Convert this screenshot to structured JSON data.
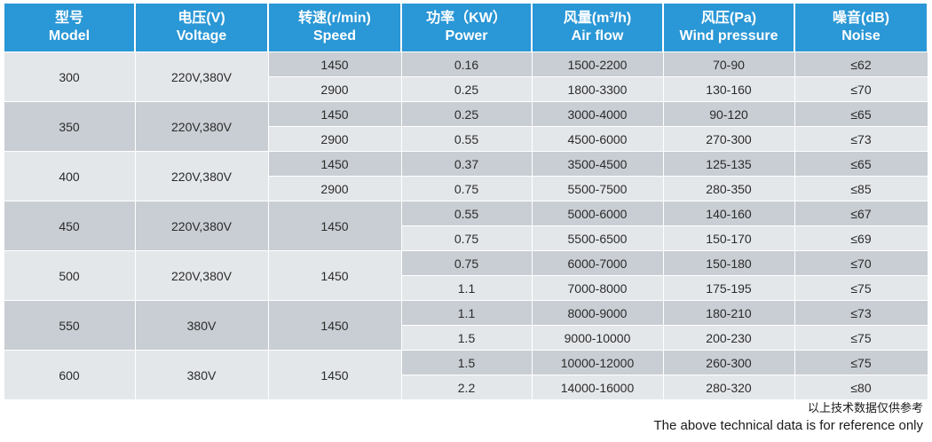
{
  "table": {
    "headers": [
      {
        "cn": "型号",
        "en": "Model"
      },
      {
        "cn": "电压(V)",
        "en": "Voltage"
      },
      {
        "cn": "转速(r/min)",
        "en": "Speed"
      },
      {
        "cn": "功率（KW）",
        "en": "Power"
      },
      {
        "cn": "风量(m³/h)",
        "en": "Air flow"
      },
      {
        "cn": "风压(Pa)",
        "en": "Wind pressure"
      },
      {
        "cn": "噪音(dB)",
        "en": "Noise"
      }
    ],
    "groups": [
      {
        "model": "300",
        "voltage": "220V,380V",
        "rows": [
          {
            "speed": "1450",
            "power": "0.16",
            "airflow": "1500-2200",
            "pressure": "70-90",
            "noise": "≤62"
          },
          {
            "speed": "2900",
            "power": "0.25",
            "airflow": "1800-3300",
            "pressure": "130-160",
            "noise": "≤70"
          }
        ]
      },
      {
        "model": "350",
        "voltage": "220V,380V",
        "rows": [
          {
            "speed": "1450",
            "power": "0.25",
            "airflow": "3000-4000",
            "pressure": "90-120",
            "noise": "≤65"
          },
          {
            "speed": "2900",
            "power": "0.55",
            "airflow": "4500-6000",
            "pressure": "270-300",
            "noise": "≤73"
          }
        ]
      },
      {
        "model": "400",
        "voltage": "220V,380V",
        "rows": [
          {
            "speed": "1450",
            "power": "0.37",
            "airflow": "3500-4500",
            "pressure": "125-135",
            "noise": "≤65"
          },
          {
            "speed": "2900",
            "power": "0.75",
            "airflow": "5500-7500",
            "pressure": "280-350",
            "noise": "≤85"
          }
        ]
      },
      {
        "model": "450",
        "voltage": "220V,380V",
        "speed": "1450",
        "rows": [
          {
            "power": "0.55",
            "airflow": "5000-6000",
            "pressure": "140-160",
            "noise": "≤67"
          },
          {
            "power": "0.75",
            "airflow": "5500-6500",
            "pressure": "150-170",
            "noise": "≤69"
          }
        ]
      },
      {
        "model": "500",
        "voltage": "220V,380V",
        "speed": "1450",
        "rows": [
          {
            "power": "0.75",
            "airflow": "6000-7000",
            "pressure": "150-180",
            "noise": "≤70"
          },
          {
            "power": "1.1",
            "airflow": "7000-8000",
            "pressure": "175-195",
            "noise": "≤75"
          }
        ]
      },
      {
        "model": "550",
        "voltage": "380V",
        "speed": "1450",
        "rows": [
          {
            "power": "1.1",
            "airflow": "8000-9000",
            "pressure": "180-210",
            "noise": "≤73"
          },
          {
            "power": "1.5",
            "airflow": "9000-10000",
            "pressure": "200-230",
            "noise": "≤75"
          }
        ]
      },
      {
        "model": "600",
        "voltage": "380V",
        "speed": "1450",
        "rows": [
          {
            "power": "1.5",
            "airflow": "10000-12000",
            "pressure": "260-300",
            "noise": "≤75"
          },
          {
            "power": "2.2",
            "airflow": "14000-16000",
            "pressure": "280-320",
            "noise": "≤80"
          }
        ]
      }
    ]
  },
  "notes": {
    "cn": "以上技术数据仅供参考",
    "en": "The above technical data is for reference only"
  },
  "colors": {
    "header_bg": "#2a97d6",
    "row_shade": "#c9ced4",
    "row_light": "#e4e7ea"
  }
}
